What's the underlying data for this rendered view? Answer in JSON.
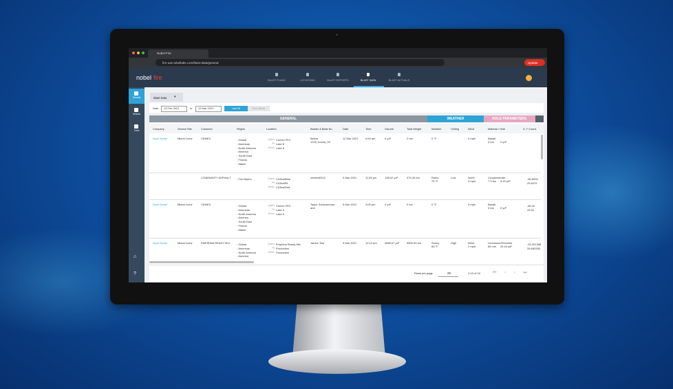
{
  "browser": {
    "tab": "Nobel Fire",
    "url": "fire-uat.nobellabs.com/blast-data/general",
    "update": "Update"
  },
  "logo": {
    "brand": "nobel",
    "product": "fire"
  },
  "nav": [
    "BLAST PLANS",
    "LOCATIONS",
    "BLAST REPORTS",
    "BLAST DATA",
    "BLAST ACTUALS"
  ],
  "sidebar": [
    "General",
    "Seismic",
    "Track"
  ],
  "page": {
    "selector": "Blast Data",
    "date_label": "Date",
    "from": "13 Feb 2021",
    "to_label": "to",
    "to": "13 Mar 2021",
    "last30": "Last 30",
    "prev_month": "Prev Month"
  },
  "sections": [
    "GENERAL",
    "WEATHER",
    "HOLE PARAMETERS"
  ],
  "columns": [
    "Company",
    "Service Site",
    "Customer",
    "Region",
    "Location",
    "Blaster & Blast No.",
    "Date",
    "Time",
    "Volume",
    "Total Weight",
    "Weather",
    "Ceiling",
    "Wind",
    "Material / Hole",
    "X, Y Coord."
  ],
  "rows": [
    {
      "company": "Dyno Nobel",
      "site": "Miami 1new",
      "customer": "CEMEX",
      "region": [
        "Global",
        "Americas",
        "North America",
        "America",
        "South East",
        "Florida",
        "Miami"
      ],
      "location": [
        {
          "label": "Quarry",
          "value": "Cemex FEC"
        },
        {
          "label": "Pit",
          "value": "Lake 8"
        },
        {
          "label": "Bench",
          "value": "Lake 8"
        }
      ],
      "blaster": [
        "Belina",
        "1203_bonna_02"
      ],
      "date": "12 Mar 2021",
      "time": "4:54 am",
      "volume": "0 yd³",
      "weight": "0 ton",
      "weather": [
        "0 °F"
      ],
      "ceiling": "",
      "wind": [
        "0 mph"
      ],
      "material": [
        "Basalt",
        "0 ton",
        "0 yd³"
      ],
      "coords": []
    },
    {
      "company": "",
      "site": "",
      "customer": "COMMUNITY ASPHALT",
      "region": [
        "Fort Myers"
      ],
      "location": [
        {
          "label": "Quarry",
          "value": "CATestMine"
        },
        {
          "label": "Pit",
          "value": "CATestPit"
        },
        {
          "label": "Bench",
          "value": "CATestGrid"
        }
      ],
      "blaster": [
        "zentest0310"
      ],
      "date": "9 Mar 2021",
      "time": "11:55 pm",
      "volume": "138.02 yd³",
      "weight": "379.26 ton",
      "weather": [
        "Rainy",
        "76 °F"
      ],
      "ceiling": "Low",
      "wind": [
        "North",
        "3 mph"
      ],
      "material": [
        "Conglomerate",
        "7.9 ton",
        "3.29 yd³"
      ],
      "coords": [
        "-80.8992",
        "25.8479"
      ]
    },
    {
      "company": "Dyno Nobel",
      "site": "Miami 1new",
      "customer": "CEMEX",
      "region": [
        "Global",
        "Americas",
        "North America",
        "America",
        "South East",
        "Florida",
        "Miami"
      ],
      "location": [
        {
          "label": "Quarry",
          "value": "Cemex FEC"
        },
        {
          "label": "Pit",
          "value": "Lake 5"
        },
        {
          "label": "Bench",
          "value": "Lake 5"
        }
      ],
      "blaster": [
        "Taylor Schwuerman",
        "and"
      ],
      "date": "9 Mar 2021",
      "time": "3:00 pm",
      "volume": "0 yd³",
      "weight": "0 ton",
      "weather": [
        "0 °F"
      ],
      "ceiling": "",
      "wind": [
        "0 mph"
      ],
      "material": [
        "Basalt",
        "0 ton",
        "0 yd³"
      ],
      "coords": [
        "-80.42",
        "25.92"
      ]
    },
    {
      "company": "Dyno Nobel",
      "site": "Miami 1new",
      "customer": "EMPIRINA READY MIX",
      "region": [
        "Global",
        "Americas",
        "North America",
        "America"
      ],
      "location": [
        {
          "label": "Quarry",
          "value": "Empirina Ready Mix"
        },
        {
          "label": "Pit",
          "value": "Production"
        },
        {
          "label": "Bench",
          "value": "Production"
        }
      ],
      "blaster": [
        "James Test"
      ],
      "date": "9 Mar 2021",
      "time": "12:12 pm",
      "volume": "3666.67 yd³",
      "weight": "9899.99 ton",
      "weather": [
        "Sunny",
        "85 °F"
      ],
      "ceiling": "High",
      "wind": [
        "West",
        "2 mph"
      ],
      "material": [
        "Limestone/Dolomite",
        "66 mm",
        "24.44 yd³"
      ],
      "coords": [
        "-92.301396",
        "34.682265"
      ]
    }
  ],
  "footer": {
    "rows_per_page": "Rows per page",
    "page_size": "25",
    "range": "1-12 of 12"
  }
}
